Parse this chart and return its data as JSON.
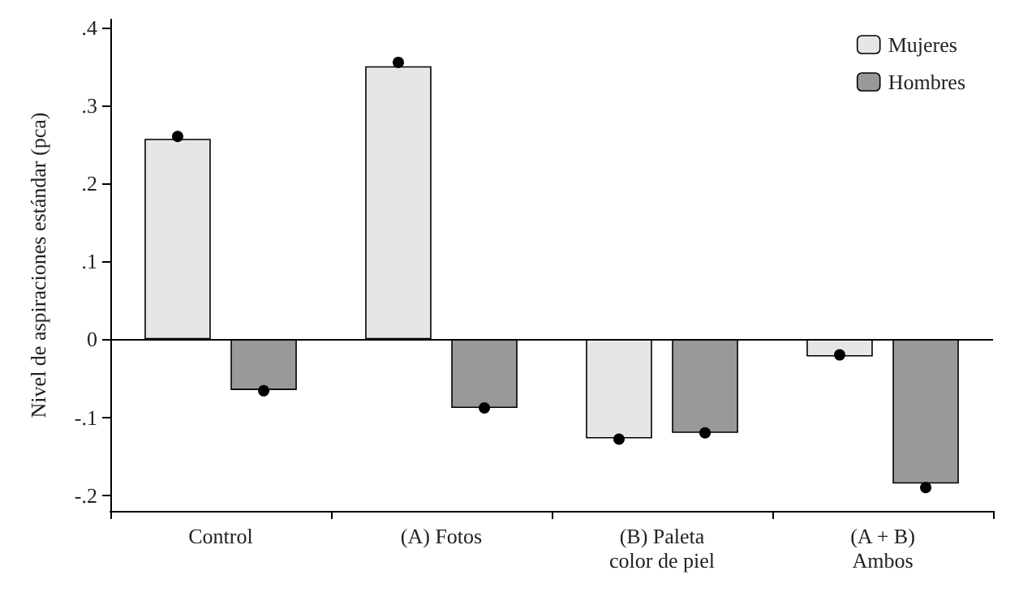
{
  "chart_data": {
    "type": "bar",
    "ylabel": "Nivel de aspiraciones estándar (pca)",
    "categories": [
      "Control",
      "(A) Fotos",
      "(B) Paleta\ncolor de piel",
      "(A + B)\nAmbos"
    ],
    "series": [
      {
        "name": "Mujeres",
        "color": "#e6e6e6",
        "values": [
          0.257,
          0.35,
          -0.127,
          -0.022
        ]
      },
      {
        "name": "Hombres",
        "color": "#999999",
        "values": [
          -0.065,
          -0.088,
          -0.12,
          -0.185
        ]
      },
      {
        "type": "scatter",
        "color": "#000000",
        "values": [
          0.26,
          0.355,
          -0.128,
          -0.02
        ]
      },
      {
        "type": "scatter",
        "color": "#000000",
        "values": [
          -0.066,
          -0.088,
          -0.12,
          -0.19
        ]
      }
    ],
    "ylim": [
      -0.22,
      0.41
    ],
    "yticks": [
      {
        "value": -0.2,
        "label": "-.2"
      },
      {
        "value": -0.1,
        "label": "-.1"
      },
      0,
      {
        "value": 0.1,
        "label": ".1"
      },
      {
        "value": 0.2,
        "label": ".2"
      },
      {
        "value": 0.3,
        "label": ".3"
      },
      {
        "value": 0.4,
        "label": ".4"
      }
    ],
    "ref_lines": [
      {
        "axis": "y",
        "value": 0,
        "color": "#000000"
      }
    ],
    "marker": "circle",
    "grid": false,
    "legend": "top right"
  }
}
